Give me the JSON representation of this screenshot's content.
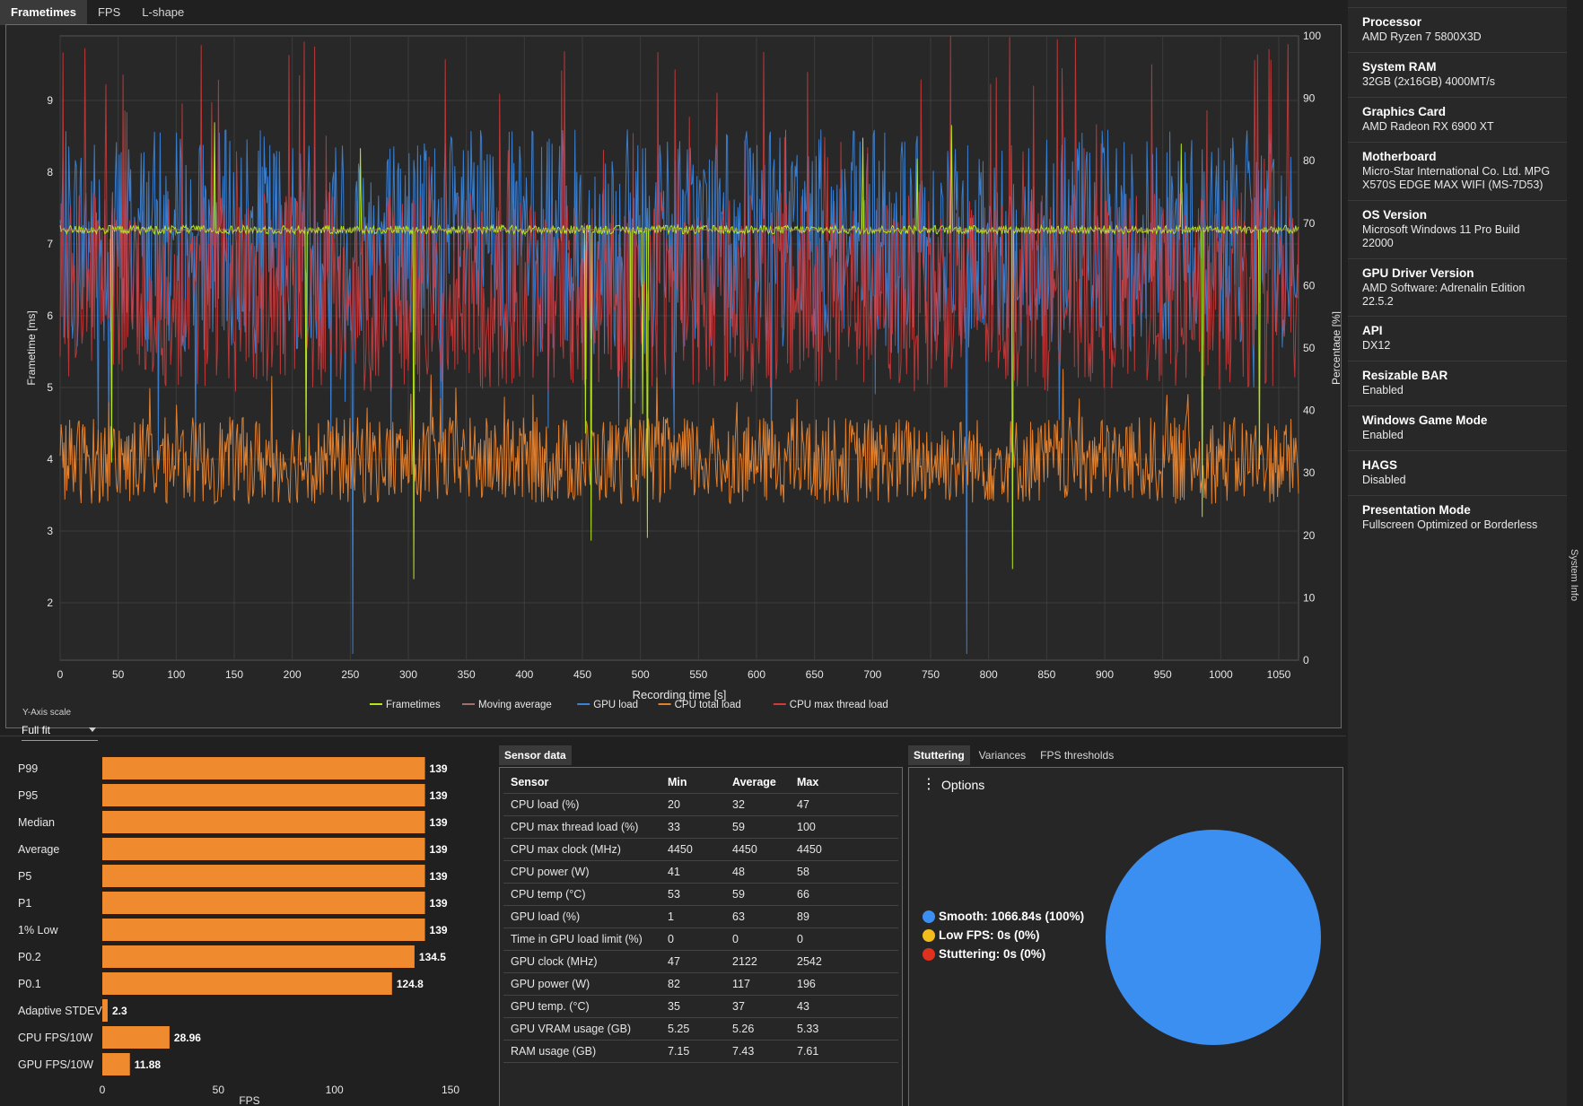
{
  "tabs": [
    "Frametimes",
    "FPS",
    "L-shape"
  ],
  "chart_data": [
    {
      "type": "line",
      "title": "",
      "xlabel": "Recording time [s]",
      "ylabel": "Frametime [ms]",
      "y2label": "Percentage [%]",
      "xlim": [
        0,
        1067
      ],
      "ylim": [
        1.2,
        9.9
      ],
      "y2lim": [
        0,
        100
      ],
      "xticks": [
        0,
        50,
        100,
        150,
        200,
        250,
        300,
        350,
        400,
        450,
        500,
        550,
        600,
        650,
        700,
        750,
        800,
        850,
        900,
        950,
        1000,
        1050
      ],
      "yticks": [
        2,
        3,
        4,
        5,
        6,
        7,
        8,
        9
      ],
      "y2ticks": [
        0,
        10,
        20,
        30,
        40,
        50,
        60,
        70,
        80,
        90,
        100
      ],
      "grid": true,
      "legend_position": "bottom-center",
      "series": [
        {
          "name": "Frametimes",
          "axis": "left",
          "color": "#b5e61d",
          "baseline": 7.2,
          "typical_range": [
            7.1,
            7.3
          ],
          "min": 2.3,
          "max": 8.8
        },
        {
          "name": "Moving average",
          "axis": "left",
          "color": "#a07070",
          "baseline": 7.2
        },
        {
          "name": "GPU load",
          "axis": "right",
          "color": "#3b82d6",
          "min": 1,
          "average": 63,
          "max": 89
        },
        {
          "name": "CPU total load",
          "axis": "right",
          "color": "#e07f2d",
          "min": 20,
          "average": 32,
          "max": 47
        },
        {
          "name": "CPU max thread load",
          "axis": "right",
          "color": "#d23939",
          "min": 33,
          "average": 59,
          "max": 100
        }
      ]
    },
    {
      "type": "bar",
      "orientation": "horizontal",
      "xlabel": "FPS",
      "xlim": [
        0,
        150
      ],
      "xticks": [
        0,
        50,
        100,
        150
      ],
      "color": "#f08a2e",
      "categories": [
        "P99",
        "P95",
        "Median",
        "Average",
        "P5",
        "P1",
        "1% Low",
        "P0.2",
        "P0.1",
        "Adaptive STDEV",
        "CPU FPS/10W",
        "GPU FPS/10W"
      ],
      "values": [
        139,
        139,
        139,
        139,
        139,
        139,
        139,
        134.5,
        124.8,
        2.3,
        28.96,
        11.88
      ]
    },
    {
      "type": "pie",
      "categories": [
        "Smooth",
        "Low FPS",
        "Stuttering"
      ],
      "values": [
        1066.84,
        0,
        0
      ],
      "colors": [
        "#3b8ff0",
        "#f2bd1d",
        "#e0301e"
      ]
    }
  ],
  "yaxis_scale": {
    "label": "Y-Axis scale",
    "value": "Full fit"
  },
  "system_info": [
    {
      "title": "Processor",
      "value": "AMD Ryzen 7 5800X3D"
    },
    {
      "title": "System RAM",
      "value": "32GB (2x16GB) 4000MT/s"
    },
    {
      "title": "Graphics Card",
      "value": "AMD Radeon RX 6900 XT"
    },
    {
      "title": "Motherboard",
      "value": "Micro-Star International Co. Ltd. MPG X570S EDGE MAX WIFI (MS-7D53)"
    },
    {
      "title": "OS Version",
      "value": "Microsoft Windows 11 Pro Build 22000"
    },
    {
      "title": "GPU Driver Version",
      "value": "AMD Software: Adrenalin Edition 22.5.2"
    },
    {
      "title": "API",
      "value": "DX12"
    },
    {
      "title": "Resizable BAR",
      "value": "Enabled"
    },
    {
      "title": "Windows Game Mode",
      "value": "Enabled"
    },
    {
      "title": "HAGS",
      "value": "Disabled"
    },
    {
      "title": "Presentation Mode",
      "value": "Fullscreen Optimized or Borderless"
    }
  ],
  "system_info_tab": "System Info",
  "sensor_tab": "Sensor data",
  "sensor_table": {
    "headers": [
      "Sensor",
      "Min",
      "Average",
      "Max"
    ],
    "rows": [
      [
        "CPU load (%)",
        "20",
        "32",
        "47"
      ],
      [
        "CPU max thread load (%)",
        "33",
        "59",
        "100"
      ],
      [
        "CPU max clock (MHz)",
        "4450",
        "4450",
        "4450"
      ],
      [
        "CPU power (W)",
        "41",
        "48",
        "58"
      ],
      [
        "CPU temp (°C)",
        "53",
        "59",
        "66"
      ],
      [
        "GPU load (%)",
        "1",
        "63",
        "89"
      ],
      [
        "Time in GPU load limit (%)",
        "0",
        "0",
        "0"
      ],
      [
        "GPU clock (MHz)",
        "47",
        "2122",
        "2542"
      ],
      [
        "GPU power (W)",
        "82",
        "117",
        "196"
      ],
      [
        "GPU temp. (°C)",
        "35",
        "37",
        "43"
      ],
      [
        "GPU VRAM usage (GB)",
        "5.25",
        "5.26",
        "5.33"
      ],
      [
        "RAM usage (GB)",
        "7.15",
        "7.43",
        "7.61"
      ]
    ]
  },
  "analysis_tabs": [
    "Stuttering",
    "Variances",
    "FPS thresholds"
  ],
  "options_label": "Options",
  "stutter_legend": [
    {
      "name": "Smooth",
      "text": "1066.84s (100%)",
      "color": "#3b8ff0"
    },
    {
      "name": "Low FPS",
      "text": "0s (0%)",
      "color": "#f2bd1d"
    },
    {
      "name": "Stuttering",
      "text": "0s (0%)",
      "color": "#e0301e"
    }
  ]
}
